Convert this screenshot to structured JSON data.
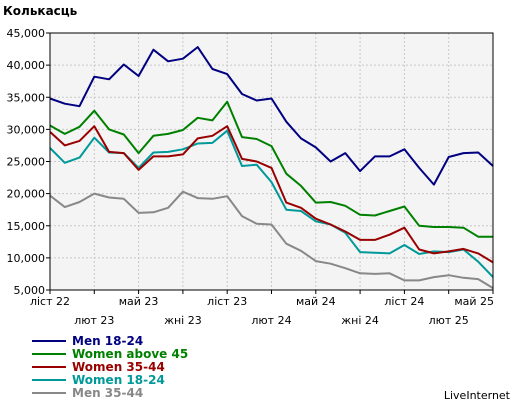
{
  "chart_data": {
    "type": "line",
    "title": "Колькасць",
    "xlabel": "",
    "ylabel": "",
    "ylim": [
      5000,
      45000
    ],
    "grid": true,
    "legend_position": "bottom-left",
    "y_ticks": [
      {
        "value": 45000,
        "label": "45,000"
      },
      {
        "value": 40000,
        "label": "40,000"
      },
      {
        "value": 35000,
        "label": "35,000"
      },
      {
        "value": 30000,
        "label": "30,000"
      },
      {
        "value": 25000,
        "label": "25,000"
      },
      {
        "value": 20000,
        "label": "20,000"
      },
      {
        "value": 15000,
        "label": "15,000"
      },
      {
        "value": 10000,
        "label": "10,000"
      },
      {
        "value": 5000,
        "label": "5,000"
      }
    ],
    "x_ticks": [
      {
        "month": 0,
        "label": "ліст 22"
      },
      {
        "month": 3,
        "label": "лют 23"
      },
      {
        "month": 6,
        "label": "май 23"
      },
      {
        "month": 9,
        "label": "жні 23"
      },
      {
        "month": 12,
        "label": "ліст 23"
      },
      {
        "month": 15,
        "label": "лют 24"
      },
      {
        "month": 18,
        "label": "май 24"
      },
      {
        "month": 21,
        "label": "жні 24"
      },
      {
        "month": 24,
        "label": "ліст 24"
      },
      {
        "month": 27,
        "label": "лют 25"
      },
      {
        "month": 30,
        "label": "май 25"
      }
    ],
    "series": [
      {
        "name": "Men 18-24",
        "color": "#000080",
        "values": [
          34800,
          34000,
          33600,
          38200,
          37800,
          40100,
          38300,
          42400,
          40600,
          41000,
          42800,
          39400,
          38600,
          35500,
          34500,
          34800,
          31200,
          28600,
          27200,
          25000,
          26300,
          23500,
          25800,
          25800,
          26900,
          24000,
          21400,
          25700,
          26300,
          26400,
          24300
        ]
      },
      {
        "name": "Women above 45",
        "color": "#008000",
        "values": [
          30600,
          29300,
          30400,
          32900,
          30000,
          29200,
          26300,
          29000,
          29300,
          29900,
          31800,
          31400,
          34300,
          28800,
          28500,
          27400,
          23100,
          21200,
          18600,
          18700,
          18100,
          16700,
          16600,
          17300,
          18000,
          15000,
          14800,
          14800,
          14700,
          13300,
          13300
        ]
      },
      {
        "name": "Women 35-44",
        "color": "#990000",
        "values": [
          29600,
          27500,
          28200,
          30500,
          26500,
          26300,
          23700,
          25800,
          25800,
          26100,
          28600,
          29000,
          30500,
          25400,
          25000,
          24000,
          18600,
          17800,
          16100,
          15200,
          14100,
          12800,
          12800,
          13600,
          14700,
          11300,
          10700,
          11000,
          11400,
          10700,
          9300
        ]
      },
      {
        "name": "Women 18-24",
        "color": "#009999",
        "values": [
          27100,
          24800,
          25600,
          28700,
          26400,
          26300,
          24000,
          26400,
          26500,
          26900,
          27800,
          27900,
          29800,
          24300,
          24500,
          21800,
          17500,
          17300,
          15700,
          15200,
          13900,
          10900,
          10800,
          10700,
          12000,
          10600,
          11000,
          10900,
          11300,
          9400,
          7000
        ]
      },
      {
        "name": "Men 35-44",
        "color": "#888888",
        "values": [
          19700,
          17900,
          18700,
          20000,
          19400,
          19200,
          17000,
          17100,
          17800,
          20300,
          19300,
          19200,
          19600,
          16500,
          15300,
          15200,
          12200,
          11100,
          9500,
          9100,
          8400,
          7600,
          7500,
          7600,
          6500,
          6500,
          7000,
          7300,
          6900,
          6700,
          5300
        ]
      }
    ]
  },
  "branding": "LiveInternet"
}
